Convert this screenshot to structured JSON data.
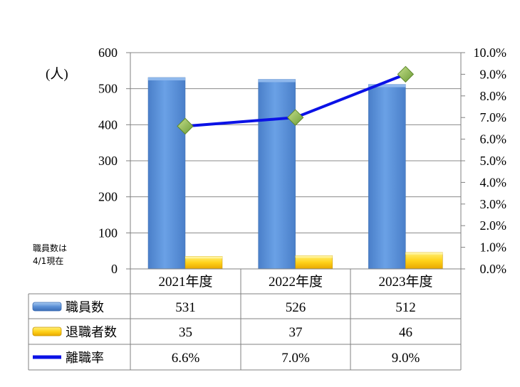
{
  "chart_data": {
    "type": "bar",
    "categories": [
      "2021年度",
      "2022年度",
      "2023年度"
    ],
    "series": [
      {
        "name": "職員数",
        "type": "bar",
        "axis": "left",
        "values": [
          531,
          526,
          512
        ],
        "color": "#5b8fd6"
      },
      {
        "name": "退職者数",
        "type": "bar",
        "axis": "left",
        "values": [
          35,
          37,
          46
        ],
        "color": "#ffd21a"
      },
      {
        "name": "離職率",
        "type": "line",
        "axis": "right",
        "values": [
          6.6,
          7.0,
          9.0
        ],
        "color": "#0b12e6",
        "marker_color": "#8ab84a"
      }
    ],
    "table_values": [
      [
        "531",
        "526",
        "512"
      ],
      [
        "35",
        "37",
        "46"
      ],
      [
        "6.6%",
        "7.0%",
        "9.0%"
      ]
    ],
    "ylim": [
      0,
      600
    ],
    "yticks": [
      0,
      100,
      200,
      300,
      400,
      500,
      600
    ],
    "ylabel": "(人)",
    "y2lim": [
      0,
      10
    ],
    "y2ticks": [
      "0.0%",
      "1.0%",
      "2.0%",
      "3.0%",
      "4.0%",
      "5.0%",
      "6.0%",
      "7.0%",
      "8.0%",
      "9.0%",
      "10.0%"
    ],
    "grid": true,
    "legend": "data-table",
    "note_lines": [
      "職員数は",
      "4/1現在"
    ]
  }
}
